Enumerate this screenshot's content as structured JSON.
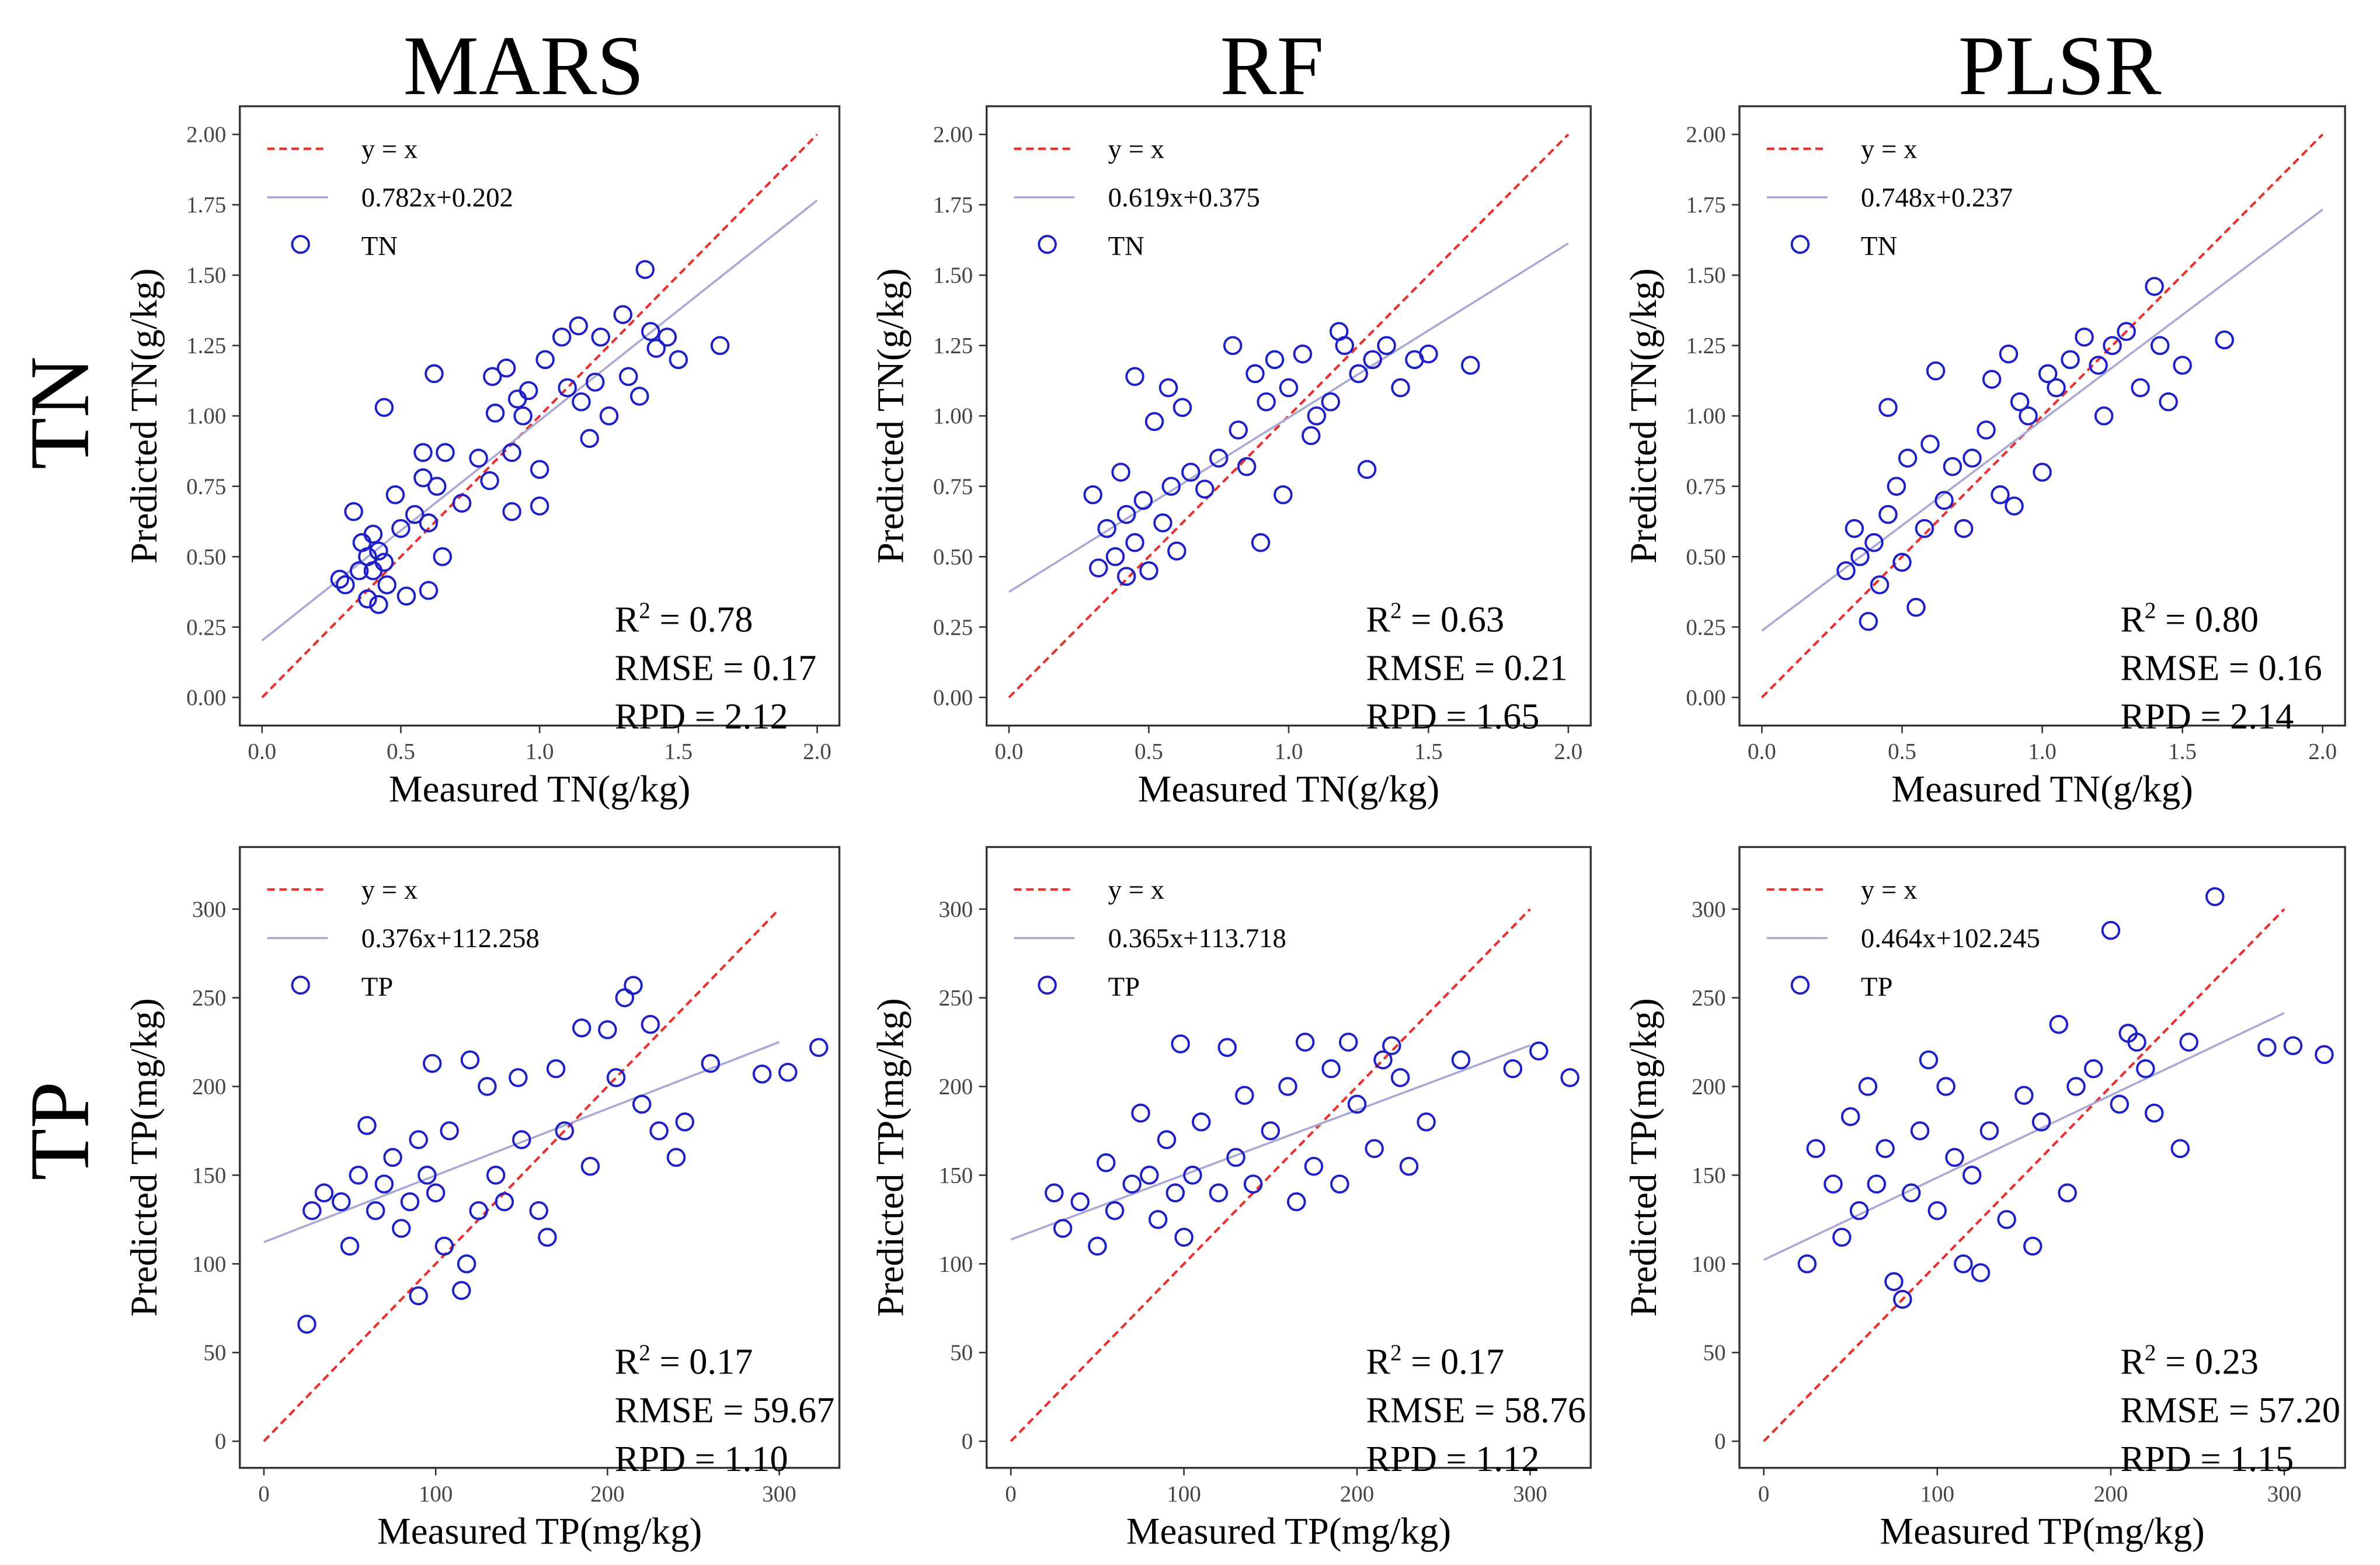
{
  "column_titles": [
    "MARS",
    "RF",
    "PLSR"
  ],
  "row_titles": [
    "TN",
    "TP"
  ],
  "colors": {
    "identity_line": "#e8312f",
    "fit_line": "#a9a9d6",
    "marker": "#1f1fc8",
    "axis": "#333333"
  },
  "chart_data": [
    {
      "type": "scatter",
      "model": "MARS",
      "variable": "TN",
      "xlabel": "Measured TN(g/kg)",
      "ylabel": "Predicted TN(g/kg)",
      "xlim": [
        -0.08,
        2.08
      ],
      "ylim": [
        -0.1,
        2.1
      ],
      "xticks": [
        "0.0",
        "0.5",
        "1.0",
        "1.5",
        "2.0"
      ],
      "yticks": [
        "0.00",
        "0.25",
        "0.50",
        "0.75",
        "1.00",
        "1.25",
        "1.50",
        "1.75",
        "2.00"
      ],
      "legend": [
        "y = x",
        "0.782x+0.202",
        "TN"
      ],
      "fit": {
        "slope": 0.782,
        "intercept": 0.202
      },
      "identity_max": 2.0,
      "stats": {
        "r2": "0.78",
        "rmse": "0.17",
        "rpd": "2.12"
      },
      "points": [
        [
          0.28,
          0.42
        ],
        [
          0.3,
          0.4
        ],
        [
          0.33,
          0.66
        ],
        [
          0.35,
          0.45
        ],
        [
          0.36,
          0.55
        ],
        [
          0.38,
          0.5
        ],
        [
          0.38,
          0.35
        ],
        [
          0.4,
          0.58
        ],
        [
          0.4,
          0.45
        ],
        [
          0.42,
          0.52
        ],
        [
          0.42,
          0.33
        ],
        [
          0.44,
          1.03
        ],
        [
          0.44,
          0.48
        ],
        [
          0.45,
          0.4
        ],
        [
          0.48,
          0.72
        ],
        [
          0.5,
          0.6
        ],
        [
          0.52,
          0.36
        ],
        [
          0.55,
          0.65
        ],
        [
          0.58,
          0.87
        ],
        [
          0.58,
          0.78
        ],
        [
          0.6,
          0.38
        ],
        [
          0.6,
          0.62
        ],
        [
          0.62,
          1.15
        ],
        [
          0.63,
          0.75
        ],
        [
          0.65,
          0.5
        ],
        [
          0.66,
          0.87
        ],
        [
          0.72,
          0.69
        ],
        [
          0.78,
          0.85
        ],
        [
          0.82,
          0.77
        ],
        [
          0.83,
          1.14
        ],
        [
          0.84,
          1.01
        ],
        [
          0.88,
          1.17
        ],
        [
          0.9,
          0.66
        ],
        [
          0.9,
          0.87
        ],
        [
          0.92,
          1.06
        ],
        [
          0.94,
          1.0
        ],
        [
          0.96,
          1.09
        ],
        [
          1.0,
          0.81
        ],
        [
          1.0,
          0.68
        ],
        [
          1.02,
          1.2
        ],
        [
          1.08,
          1.28
        ],
        [
          1.1,
          1.1
        ],
        [
          1.14,
          1.32
        ],
        [
          1.15,
          1.05
        ],
        [
          1.18,
          0.92
        ],
        [
          1.2,
          1.12
        ],
        [
          1.22,
          1.28
        ],
        [
          1.25,
          1.0
        ],
        [
          1.3,
          1.36
        ],
        [
          1.32,
          1.14
        ],
        [
          1.36,
          1.07
        ],
        [
          1.38,
          1.52
        ],
        [
          1.4,
          1.3
        ],
        [
          1.42,
          1.24
        ],
        [
          1.46,
          1.28
        ],
        [
          1.5,
          1.2
        ],
        [
          1.65,
          1.25
        ]
      ]
    },
    {
      "type": "scatter",
      "model": "RF",
      "variable": "TN",
      "xlabel": "Measured TN(g/kg)",
      "ylabel": "Predicted TN(g/kg)",
      "xlim": [
        -0.08,
        2.08
      ],
      "ylim": [
        -0.1,
        2.1
      ],
      "xticks": [
        "0.0",
        "0.5",
        "1.0",
        "1.5",
        "2.0"
      ],
      "yticks": [
        "0.00",
        "0.25",
        "0.50",
        "0.75",
        "1.00",
        "1.25",
        "1.50",
        "1.75",
        "2.00"
      ],
      "legend": [
        "y = x",
        "0.619x+0.375",
        "TN"
      ],
      "fit": {
        "slope": 0.619,
        "intercept": 0.375
      },
      "identity_max": 2.0,
      "stats": {
        "r2": "0.63",
        "rmse": "0.21",
        "rpd": "1.65"
      },
      "points": [
        [
          0.3,
          0.72
        ],
        [
          0.32,
          0.46
        ],
        [
          0.35,
          0.6
        ],
        [
          0.38,
          0.5
        ],
        [
          0.4,
          0.8
        ],
        [
          0.42,
          0.65
        ],
        [
          0.42,
          0.43
        ],
        [
          0.45,
          1.14
        ],
        [
          0.45,
          0.55
        ],
        [
          0.48,
          0.7
        ],
        [
          0.5,
          0.45
        ],
        [
          0.52,
          0.98
        ],
        [
          0.55,
          0.62
        ],
        [
          0.57,
          1.1
        ],
        [
          0.58,
          0.75
        ],
        [
          0.6,
          0.52
        ],
        [
          0.62,
          1.03
        ],
        [
          0.65,
          0.8
        ],
        [
          0.7,
          0.74
        ],
        [
          0.75,
          0.85
        ],
        [
          0.8,
          1.25
        ],
        [
          0.82,
          0.95
        ],
        [
          0.85,
          0.82
        ],
        [
          0.88,
          1.15
        ],
        [
          0.9,
          0.55
        ],
        [
          0.92,
          1.05
        ],
        [
          0.95,
          1.2
        ],
        [
          0.98,
          0.72
        ],
        [
          1.0,
          1.1
        ],
        [
          1.05,
          1.22
        ],
        [
          1.08,
          0.93
        ],
        [
          1.1,
          1.0
        ],
        [
          1.15,
          1.05
        ],
        [
          1.18,
          1.3
        ],
        [
          1.2,
          1.25
        ],
        [
          1.25,
          1.15
        ],
        [
          1.28,
          0.81
        ],
        [
          1.3,
          1.2
        ],
        [
          1.35,
          1.25
        ],
        [
          1.4,
          1.1
        ],
        [
          1.45,
          1.2
        ],
        [
          1.5,
          1.22
        ],
        [
          1.65,
          1.18
        ]
      ]
    },
    {
      "type": "scatter",
      "model": "PLSR",
      "variable": "TN",
      "xlabel": "Measured TN(g/kg)",
      "ylabel": "Predicted TN(g/kg)",
      "xlim": [
        -0.08,
        2.08
      ],
      "ylim": [
        -0.1,
        2.1
      ],
      "xticks": [
        "0.0",
        "0.5",
        "1.0",
        "1.5",
        "2.0"
      ],
      "yticks": [
        "0.00",
        "0.25",
        "0.50",
        "0.75",
        "1.00",
        "1.25",
        "1.50",
        "1.75",
        "2.00"
      ],
      "legend": [
        "y = x",
        "0.748x+0.237",
        "TN"
      ],
      "fit": {
        "slope": 0.748,
        "intercept": 0.237
      },
      "identity_max": 2.0,
      "stats": {
        "r2": "0.80",
        "rmse": "0.16",
        "rpd": "2.14"
      },
      "points": [
        [
          0.3,
          0.45
        ],
        [
          0.33,
          0.6
        ],
        [
          0.35,
          0.5
        ],
        [
          0.38,
          0.27
        ],
        [
          0.4,
          0.55
        ],
        [
          0.42,
          0.4
        ],
        [
          0.45,
          1.03
        ],
        [
          0.45,
          0.65
        ],
        [
          0.48,
          0.75
        ],
        [
          0.5,
          0.48
        ],
        [
          0.52,
          0.85
        ],
        [
          0.55,
          0.32
        ],
        [
          0.58,
          0.6
        ],
        [
          0.6,
          0.9
        ],
        [
          0.62,
          1.16
        ],
        [
          0.65,
          0.7
        ],
        [
          0.68,
          0.82
        ],
        [
          0.72,
          0.6
        ],
        [
          0.75,
          0.85
        ],
        [
          0.8,
          0.95
        ],
        [
          0.82,
          1.13
        ],
        [
          0.85,
          0.72
        ],
        [
          0.88,
          1.22
        ],
        [
          0.9,
          0.68
        ],
        [
          0.92,
          1.05
        ],
        [
          0.95,
          1.0
        ],
        [
          1.0,
          0.8
        ],
        [
          1.02,
          1.15
        ],
        [
          1.05,
          1.1
        ],
        [
          1.1,
          1.2
        ],
        [
          1.15,
          1.28
        ],
        [
          1.2,
          1.18
        ],
        [
          1.22,
          1.0
        ],
        [
          1.25,
          1.25
        ],
        [
          1.3,
          1.3
        ],
        [
          1.35,
          1.1
        ],
        [
          1.4,
          1.46
        ],
        [
          1.42,
          1.25
        ],
        [
          1.45,
          1.05
        ],
        [
          1.5,
          1.18
        ],
        [
          1.65,
          1.27
        ]
      ]
    },
    {
      "type": "scatter",
      "model": "MARS",
      "variable": "TP",
      "xlabel": "Measured TP(mg/kg)",
      "ylabel": "Predicted TP(mg/kg)",
      "xlim": [
        -14,
        335
      ],
      "ylim": [
        -15,
        335
      ],
      "xticks": [
        "0",
        "100",
        "200",
        "300"
      ],
      "yticks": [
        "0",
        "50",
        "100",
        "150",
        "200",
        "250",
        "300"
      ],
      "legend": [
        "y = x",
        "0.376x+112.258",
        "TP"
      ],
      "fit": {
        "slope": 0.376,
        "intercept": 112.258
      },
      "identity_max": 300,
      "stats": {
        "r2": "0.17",
        "rmse": "59.67",
        "rpd": "1.10"
      },
      "points": [
        [
          25,
          66
        ],
        [
          28,
          130
        ],
        [
          35,
          140
        ],
        [
          45,
          135
        ],
        [
          50,
          110
        ],
        [
          55,
          150
        ],
        [
          60,
          178
        ],
        [
          65,
          130
        ],
        [
          70,
          145
        ],
        [
          75,
          160
        ],
        [
          80,
          120
        ],
        [
          85,
          135
        ],
        [
          90,
          82
        ],
        [
          90,
          170
        ],
        [
          95,
          150
        ],
        [
          98,
          213
        ],
        [
          100,
          140
        ],
        [
          105,
          110
        ],
        [
          108,
          175
        ],
        [
          115,
          85
        ],
        [
          118,
          100
        ],
        [
          120,
          215
        ],
        [
          125,
          130
        ],
        [
          130,
          200
        ],
        [
          135,
          150
        ],
        [
          140,
          135
        ],
        [
          148,
          205
        ],
        [
          150,
          170
        ],
        [
          160,
          130
        ],
        [
          165,
          115
        ],
        [
          170,
          210
        ],
        [
          175,
          175
        ],
        [
          185,
          233
        ],
        [
          190,
          155
        ],
        [
          200,
          232
        ],
        [
          205,
          205
        ],
        [
          210,
          250
        ],
        [
          215,
          257
        ],
        [
          220,
          190
        ],
        [
          225,
          235
        ],
        [
          230,
          175
        ],
        [
          240,
          160
        ],
        [
          245,
          180
        ],
        [
          260,
          213
        ],
        [
          290,
          207
        ],
        [
          305,
          208
        ],
        [
          323,
          222
        ]
      ]
    },
    {
      "type": "scatter",
      "model": "RF",
      "variable": "TP",
      "xlabel": "Measured TP(mg/kg)",
      "ylabel": "Predicted TP(mg/kg)",
      "xlim": [
        -14,
        335
      ],
      "ylim": [
        -15,
        335
      ],
      "xticks": [
        "0",
        "100",
        "200",
        "300"
      ],
      "yticks": [
        "0",
        "50",
        "100",
        "150",
        "200",
        "250",
        "300"
      ],
      "legend": [
        "y = x",
        "0.365x+113.718",
        "TP"
      ],
      "fit": {
        "slope": 0.365,
        "intercept": 113.718
      },
      "identity_max": 300,
      "stats": {
        "r2": "0.17",
        "rmse": "58.76",
        "rpd": "1.12"
      },
      "points": [
        [
          25,
          140
        ],
        [
          30,
          120
        ],
        [
          40,
          135
        ],
        [
          50,
          110
        ],
        [
          55,
          157
        ],
        [
          60,
          130
        ],
        [
          70,
          145
        ],
        [
          75,
          185
        ],
        [
          80,
          150
        ],
        [
          85,
          125
        ],
        [
          90,
          170
        ],
        [
          95,
          140
        ],
        [
          98,
          224
        ],
        [
          100,
          115
        ],
        [
          105,
          150
        ],
        [
          110,
          180
        ],
        [
          120,
          140
        ],
        [
          125,
          222
        ],
        [
          130,
          160
        ],
        [
          135,
          195
        ],
        [
          140,
          145
        ],
        [
          150,
          175
        ],
        [
          160,
          200
        ],
        [
          165,
          135
        ],
        [
          170,
          225
        ],
        [
          175,
          155
        ],
        [
          185,
          210
        ],
        [
          190,
          145
        ],
        [
          195,
          225
        ],
        [
          200,
          190
        ],
        [
          210,
          165
        ],
        [
          215,
          215
        ],
        [
          220,
          223
        ],
        [
          225,
          205
        ],
        [
          230,
          155
        ],
        [
          240,
          180
        ],
        [
          260,
          215
        ],
        [
          290,
          210
        ],
        [
          305,
          220
        ],
        [
          323,
          205
        ]
      ]
    },
    {
      "type": "scatter",
      "model": "PLSR",
      "variable": "TP",
      "xlabel": "Measured TP(mg/kg)",
      "ylabel": "Predicted TP(mg/kg)",
      "xlim": [
        -14,
        335
      ],
      "ylim": [
        -15,
        335
      ],
      "xticks": [
        "0",
        "100",
        "200",
        "300"
      ],
      "yticks": [
        "0",
        "50",
        "100",
        "150",
        "200",
        "250",
        "300"
      ],
      "legend": [
        "y = x",
        "0.464x+102.245",
        "TP"
      ],
      "fit": {
        "slope": 0.464,
        "intercept": 102.245
      },
      "identity_max": 300,
      "stats": {
        "r2": "0.23",
        "rmse": "57.20",
        "rpd": "1.15"
      },
      "points": [
        [
          25,
          100
        ],
        [
          30,
          165
        ],
        [
          40,
          145
        ],
        [
          45,
          115
        ],
        [
          50,
          183
        ],
        [
          55,
          130
        ],
        [
          60,
          200
        ],
        [
          65,
          145
        ],
        [
          70,
          165
        ],
        [
          75,
          90
        ],
        [
          80,
          80
        ],
        [
          85,
          140
        ],
        [
          90,
          175
        ],
        [
          95,
          215
        ],
        [
          100,
          130
        ],
        [
          105,
          200
        ],
        [
          110,
          160
        ],
        [
          115,
          100
        ],
        [
          120,
          150
        ],
        [
          125,
          95
        ],
        [
          130,
          175
        ],
        [
          140,
          125
        ],
        [
          150,
          195
        ],
        [
          155,
          110
        ],
        [
          160,
          180
        ],
        [
          170,
          235
        ],
        [
          175,
          140
        ],
        [
          180,
          200
        ],
        [
          190,
          210
        ],
        [
          200,
          288
        ],
        [
          205,
          190
        ],
        [
          210,
          230
        ],
        [
          215,
          225
        ],
        [
          220,
          210
        ],
        [
          225,
          185
        ],
        [
          240,
          165
        ],
        [
          245,
          225
        ],
        [
          260,
          307
        ],
        [
          290,
          222
        ],
        [
          305,
          223
        ],
        [
          323,
          218
        ]
      ]
    }
  ]
}
